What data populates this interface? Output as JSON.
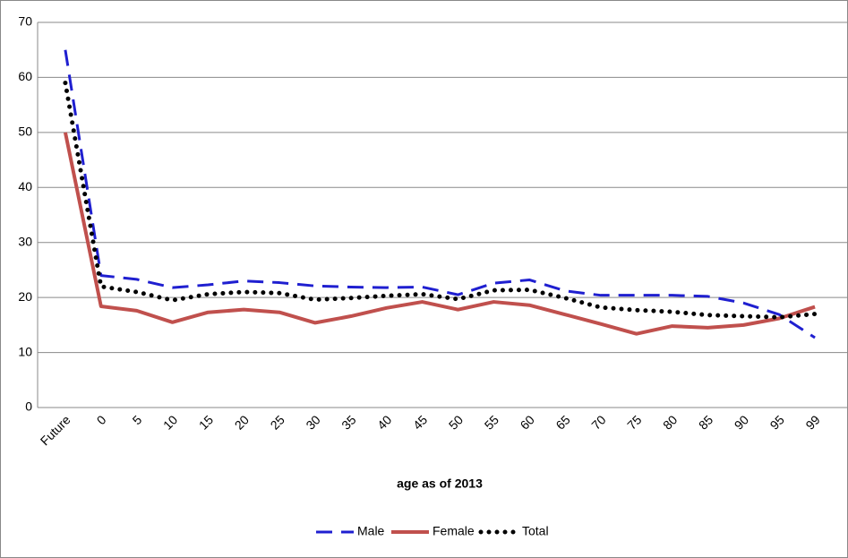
{
  "chart_data": {
    "type": "line",
    "x_label": "age as of 2013",
    "categories": [
      "Future",
      "0",
      "5",
      "10",
      "15",
      "20",
      "25",
      "30",
      "35",
      "40",
      "45",
      "50",
      "55",
      "60",
      "65",
      "70",
      "75",
      "80",
      "85",
      "90",
      "95",
      "99"
    ],
    "series": [
      {
        "name": "Male",
        "color": "#1f1fd0",
        "style": "dashed",
        "values": [
          65,
          24,
          23.3,
          21.8,
          22.3,
          23,
          22.7,
          22.1,
          21.9,
          21.8,
          21.9,
          20.5,
          22.6,
          23.2,
          21.2,
          20.4,
          20.4,
          20.4,
          20.2,
          19,
          16.9,
          12.7
        ]
      },
      {
        "name": "Female",
        "color": "#c0504d",
        "style": "solid",
        "values": [
          50,
          18.4,
          17.6,
          15.5,
          17.3,
          17.8,
          17.3,
          15.4,
          16.6,
          18.1,
          19.2,
          17.8,
          19.2,
          18.6,
          16.9,
          15.2,
          13.4,
          14.8,
          14.5,
          15,
          16.2,
          18.3
        ]
      },
      {
        "name": "Total",
        "color": "#000000",
        "style": "dotted",
        "values": [
          59,
          22,
          21,
          19.5,
          20.6,
          21,
          20.8,
          19.6,
          19.9,
          20.3,
          20.6,
          19.7,
          21.3,
          21.4,
          19.9,
          18.2,
          17.7,
          17.4,
          16.8,
          16.6,
          16.4,
          17
        ]
      }
    ],
    "ylim": [
      0,
      70
    ],
    "yticks": [
      0,
      10,
      20,
      30,
      40,
      50,
      60,
      70
    ],
    "grid": true,
    "legend": "bottom"
  }
}
